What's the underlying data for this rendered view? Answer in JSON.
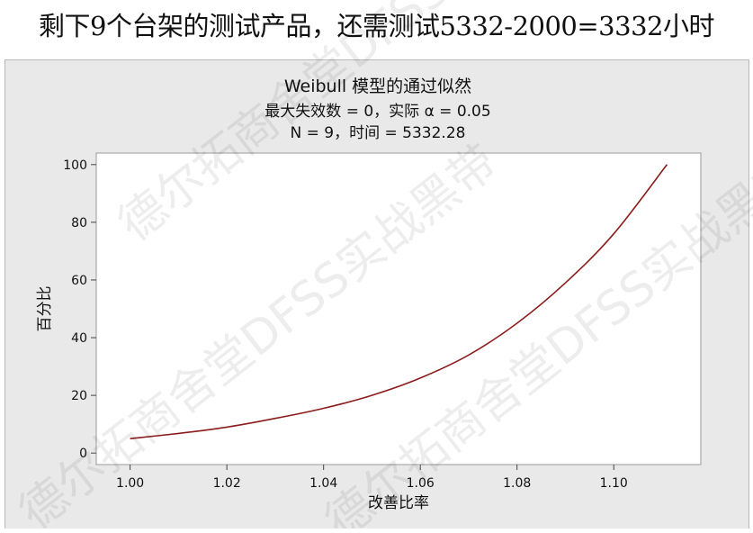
{
  "headline": "剩下9个台架的测试产品，还需测试5332-2000=3332小时",
  "watermark": "德尔拓商舍堂DFSS实战黑带",
  "chart_data": {
    "type": "line",
    "title": "Weibull 模型的通过似然",
    "subtitle_lines": [
      "最大失效数 = 0，实际 α = 0.05",
      "N = 9，时间 = 5332.28"
    ],
    "xlabel": "改善比率",
    "ylabel": "百分比",
    "xlim": [
      0.993,
      1.118
    ],
    "ylim": [
      -4,
      104
    ],
    "x_ticks": [
      1.0,
      1.02,
      1.04,
      1.06,
      1.08,
      1.1
    ],
    "x_tick_labels": [
      "1.00",
      "1.02",
      "1.04",
      "1.06",
      "1.08",
      "1.10"
    ],
    "y_ticks": [
      0,
      20,
      40,
      60,
      80,
      100
    ],
    "y_tick_labels": [
      "0",
      "20",
      "40",
      "60",
      "80",
      "100"
    ],
    "grid": false,
    "line_color": "#8b1c1c",
    "series": [
      {
        "x": [
          1.0,
          1.01,
          1.02,
          1.03,
          1.04,
          1.05,
          1.06,
          1.07,
          1.08,
          1.09,
          1.1,
          1.111
        ],
        "values": [
          5.0,
          6.8,
          9.0,
          12.0,
          15.5,
          20.0,
          26.0,
          34.0,
          45.0,
          59.0,
          76.0,
          100.0
        ]
      }
    ]
  }
}
